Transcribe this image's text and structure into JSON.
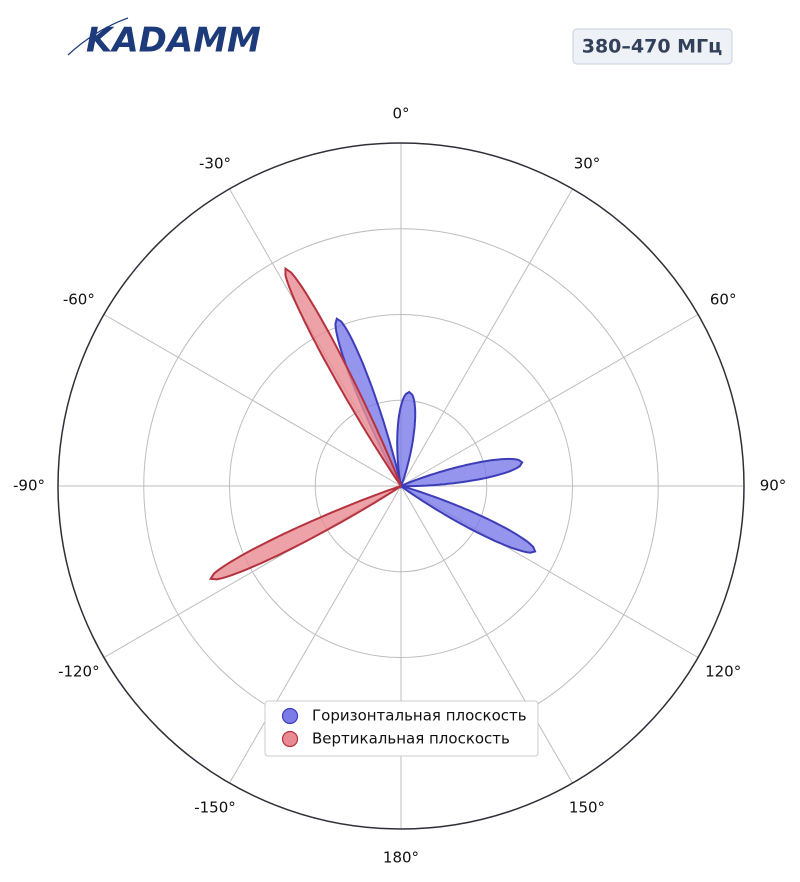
{
  "header": {
    "logo": "KADAMM",
    "band": "380–470 МГц"
  },
  "chart_data": {
    "type": "polar",
    "rlim": [
      0,
      4
    ],
    "rticks": [
      1,
      2,
      3
    ],
    "angle_ticks": [
      {
        "value": 0,
        "label": "0°"
      },
      {
        "value": 30,
        "label": "30°"
      },
      {
        "value": 60,
        "label": "60°"
      },
      {
        "value": 90,
        "label": "90°"
      },
      {
        "value": 120,
        "label": "120°"
      },
      {
        "value": 150,
        "label": "150°"
      },
      {
        "value": 180,
        "label": "180°"
      },
      {
        "value": -150,
        "label": "-150°"
      },
      {
        "value": -120,
        "label": "-120°"
      },
      {
        "value": -90,
        "label": "-90°"
      },
      {
        "value": -60,
        "label": "-60°"
      },
      {
        "value": -30,
        "label": "-30°"
      }
    ],
    "series": [
      {
        "name": "Горизонтальная плоскость",
        "color": "#7b7be8",
        "edge": "#3d3db8",
        "angles": [
          5,
          79,
          116,
          -21
        ],
        "values": [
          1.1,
          1.44,
          1.74,
          2.09
        ]
      },
      {
        "name": "Вертикальная плоскость",
        "color": "#e88b92",
        "edge": "#b5333f",
        "angles": [
          -28,
          -116
        ],
        "values": [
          2.87,
          2.47
        ]
      }
    ],
    "legend": "lower center"
  }
}
